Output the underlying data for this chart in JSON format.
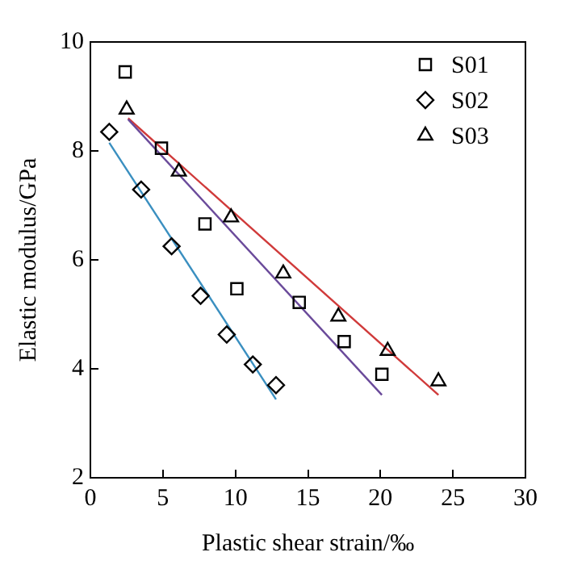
{
  "chart_data": {
    "type": "scatter",
    "xlabel": "Plastic shear strain/‰",
    "ylabel": "Elastic modulus/GPa",
    "xlim": [
      0,
      30
    ],
    "xticks": [
      0,
      5,
      10,
      15,
      20,
      25,
      30
    ],
    "ylim": [
      2,
      10
    ],
    "yticks": [
      2,
      4,
      6,
      8,
      10
    ],
    "grid": false,
    "legend": "top right",
    "series": [
      {
        "name": "S01",
        "color": "#000000",
        "marker": "square",
        "x": [
          2.4,
          4.9,
          7.9,
          10.1,
          14.4,
          17.5,
          20.1
        ],
        "values": [
          9.45,
          8.05,
          6.66,
          5.47,
          5.22,
          4.5,
          3.9
        ]
      },
      {
        "name": "S02",
        "color": "#000000",
        "marker": "diamond",
        "x": [
          1.3,
          3.5,
          5.6,
          7.6,
          9.4,
          11.2,
          12.8
        ],
        "values": [
          8.35,
          7.29,
          6.25,
          5.34,
          4.63,
          4.08,
          3.7
        ]
      },
      {
        "name": "S03",
        "color": "#000000",
        "marker": "triangle",
        "x": [
          2.5,
          6.1,
          9.7,
          13.3,
          17.1,
          20.5,
          24.0
        ],
        "values": [
          8.76,
          7.62,
          6.78,
          5.75,
          4.96,
          4.33,
          3.77
        ]
      },
      {
        "type": "line",
        "color": "#3a8fc0",
        "marker": "none",
        "x": [
          1.3,
          12.8
        ],
        "values": [
          8.15,
          3.44
        ]
      },
      {
        "type": "line",
        "color": "#6a4a9a",
        "marker": "none",
        "x": [
          2.6,
          20.1
        ],
        "values": [
          8.58,
          3.52
        ]
      },
      {
        "type": "line",
        "color": "#d03a3a",
        "marker": "none",
        "x": [
          2.6,
          24.0
        ],
        "values": [
          8.6,
          3.52
        ]
      }
    ]
  }
}
